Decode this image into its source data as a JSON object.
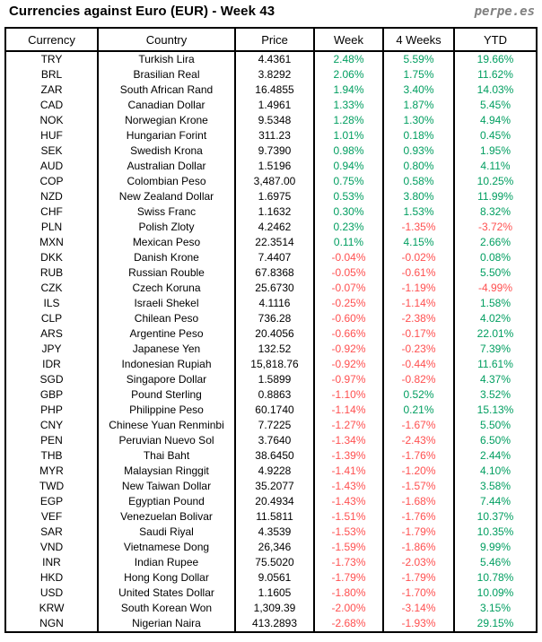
{
  "header": {
    "title": "Currencies against Euro (EUR) - Week 43",
    "brand": "perpe.es"
  },
  "colors": {
    "positive": "#009E60",
    "negative": "#FF5050",
    "border": "#000000",
    "brand_gray": "#808080"
  },
  "table": {
    "headers": [
      "Currency",
      "Country",
      "Price",
      "Week",
      "4 Weeks",
      "YTD"
    ],
    "rows": [
      {
        "code": "TRY",
        "country": "Turkish Lira",
        "price": "4.4361",
        "week": "2.48%",
        "four_weeks": "5.59%",
        "ytd": "19.66%"
      },
      {
        "code": "BRL",
        "country": "Brasilian Real",
        "price": "3.8292",
        "week": "2.06%",
        "four_weeks": "1.75%",
        "ytd": "11.62%"
      },
      {
        "code": "ZAR",
        "country": "South African Rand",
        "price": "16.4855",
        "week": "1.94%",
        "four_weeks": "3.40%",
        "ytd": "14.03%"
      },
      {
        "code": "CAD",
        "country": "Canadian Dollar",
        "price": "1.4961",
        "week": "1.33%",
        "four_weeks": "1.87%",
        "ytd": "5.45%"
      },
      {
        "code": "NOK",
        "country": "Norwegian Krone",
        "price": "9.5348",
        "week": "1.28%",
        "four_weeks": "1.30%",
        "ytd": "4.94%"
      },
      {
        "code": "HUF",
        "country": "Hungarian Forint",
        "price": "311.23",
        "week": "1.01%",
        "four_weeks": "0.18%",
        "ytd": "0.45%"
      },
      {
        "code": "SEK",
        "country": "Swedish Krona",
        "price": "9.7390",
        "week": "0.98%",
        "four_weeks": "0.93%",
        "ytd": "1.95%"
      },
      {
        "code": "AUD",
        "country": "Australian Dollar",
        "price": "1.5196",
        "week": "0.94%",
        "four_weeks": "0.80%",
        "ytd": "4.11%"
      },
      {
        "code": "COP",
        "country": "Colombian Peso",
        "price": "3,487.00",
        "week": "0.75%",
        "four_weeks": "0.58%",
        "ytd": "10.25%"
      },
      {
        "code": "NZD",
        "country": "New Zealand Dollar",
        "price": "1.6975",
        "week": "0.53%",
        "four_weeks": "3.80%",
        "ytd": "11.99%"
      },
      {
        "code": "CHF",
        "country": "Swiss Franc",
        "price": "1.1632",
        "week": "0.30%",
        "four_weeks": "1.53%",
        "ytd": "8.32%"
      },
      {
        "code": "PLN",
        "country": "Polish Zloty",
        "price": "4.2462",
        "week": "0.23%",
        "four_weeks": "-1.35%",
        "ytd": "-3.72%"
      },
      {
        "code": "MXN",
        "country": "Mexican Peso",
        "price": "22.3514",
        "week": "0.11%",
        "four_weeks": "4.15%",
        "ytd": "2.66%"
      },
      {
        "code": "DKK",
        "country": "Danish Krone",
        "price": "7.4407",
        "week": "-0.04%",
        "four_weeks": "-0.02%",
        "ytd": "0.08%"
      },
      {
        "code": "RUB",
        "country": "Russian Rouble",
        "price": "67.8368",
        "week": "-0.05%",
        "four_weeks": "-0.61%",
        "ytd": "5.50%"
      },
      {
        "code": "CZK",
        "country": "Czech Koruna",
        "price": "25.6730",
        "week": "-0.07%",
        "four_weeks": "-1.19%",
        "ytd": "-4.99%"
      },
      {
        "code": "ILS",
        "country": "Israeli Shekel",
        "price": "4.1116",
        "week": "-0.25%",
        "four_weeks": "-1.14%",
        "ytd": "1.58%"
      },
      {
        "code": "CLP",
        "country": "Chilean Peso",
        "price": "736.28",
        "week": "-0.60%",
        "four_weeks": "-2.38%",
        "ytd": "4.02%"
      },
      {
        "code": "ARS",
        "country": "Argentine Peso",
        "price": "20.4056",
        "week": "-0.66%",
        "four_weeks": "-0.17%",
        "ytd": "22.01%"
      },
      {
        "code": "JPY",
        "country": "Japanese Yen",
        "price": "132.52",
        "week": "-0.92%",
        "four_weeks": "-0.23%",
        "ytd": "7.39%"
      },
      {
        "code": "IDR",
        "country": "Indonesian Rupiah",
        "price": "15,818.76",
        "week": "-0.92%",
        "four_weeks": "-0.44%",
        "ytd": "11.61%"
      },
      {
        "code": "SGD",
        "country": "Singapore Dollar",
        "price": "1.5899",
        "week": "-0.97%",
        "four_weeks": "-0.82%",
        "ytd": "4.37%"
      },
      {
        "code": "GBP",
        "country": "Pound Sterling",
        "price": "0.8863",
        "week": "-1.10%",
        "four_weeks": "0.52%",
        "ytd": "3.52%"
      },
      {
        "code": "PHP",
        "country": "Philippine Peso",
        "price": "60.1740",
        "week": "-1.14%",
        "four_weeks": "0.21%",
        "ytd": "15.13%"
      },
      {
        "code": "CNY",
        "country": "Chinese Yuan Renminbi",
        "price": "7.7225",
        "week": "-1.27%",
        "four_weeks": "-1.67%",
        "ytd": "5.50%"
      },
      {
        "code": "PEN",
        "country": "Peruvian Nuevo Sol",
        "price": "3.7640",
        "week": "-1.34%",
        "four_weeks": "-2.43%",
        "ytd": "6.50%"
      },
      {
        "code": "THB",
        "country": "Thai Baht",
        "price": "38.6450",
        "week": "-1.39%",
        "four_weeks": "-1.76%",
        "ytd": "2.44%"
      },
      {
        "code": "MYR",
        "country": "Malaysian Ringgit",
        "price": "4.9228",
        "week": "-1.41%",
        "four_weeks": "-1.20%",
        "ytd": "4.10%"
      },
      {
        "code": "TWD",
        "country": "New Taiwan Dollar",
        "price": "35.2077",
        "week": "-1.43%",
        "four_weeks": "-1.57%",
        "ytd": "3.58%"
      },
      {
        "code": "EGP",
        "country": "Egyptian Pound",
        "price": "20.4934",
        "week": "-1.43%",
        "four_weeks": "-1.68%",
        "ytd": "7.44%"
      },
      {
        "code": "VEF",
        "country": "Venezuelan Bolivar",
        "price": "11.5811",
        "week": "-1.51%",
        "four_weeks": "-1.76%",
        "ytd": "10.37%"
      },
      {
        "code": "SAR",
        "country": "Saudi Riyal",
        "price": "4.3539",
        "week": "-1.53%",
        "four_weeks": "-1.79%",
        "ytd": "10.35%"
      },
      {
        "code": "VND",
        "country": "Vietnamese Dong",
        "price": "26,346",
        "week": "-1.59%",
        "four_weeks": "-1.86%",
        "ytd": "9.99%"
      },
      {
        "code": "INR",
        "country": "Indian Rupee",
        "price": "75.5020",
        "week": "-1.73%",
        "four_weeks": "-2.03%",
        "ytd": "5.46%"
      },
      {
        "code": "HKD",
        "country": "Hong Kong Dollar",
        "price": "9.0561",
        "week": "-1.79%",
        "four_weeks": "-1.79%",
        "ytd": "10.78%"
      },
      {
        "code": "USD",
        "country": "United States Dollar",
        "price": "1.1605",
        "week": "-1.80%",
        "four_weeks": "-1.70%",
        "ytd": "10.09%"
      },
      {
        "code": "KRW",
        "country": "South Korean Won",
        "price": "1,309.39",
        "week": "-2.00%",
        "four_weeks": "-3.14%",
        "ytd": "3.15%"
      },
      {
        "code": "NGN",
        "country": "Nigerian Naira",
        "price": "413.2893",
        "week": "-2.68%",
        "four_weeks": "-1.93%",
        "ytd": "29.15%"
      }
    ]
  }
}
